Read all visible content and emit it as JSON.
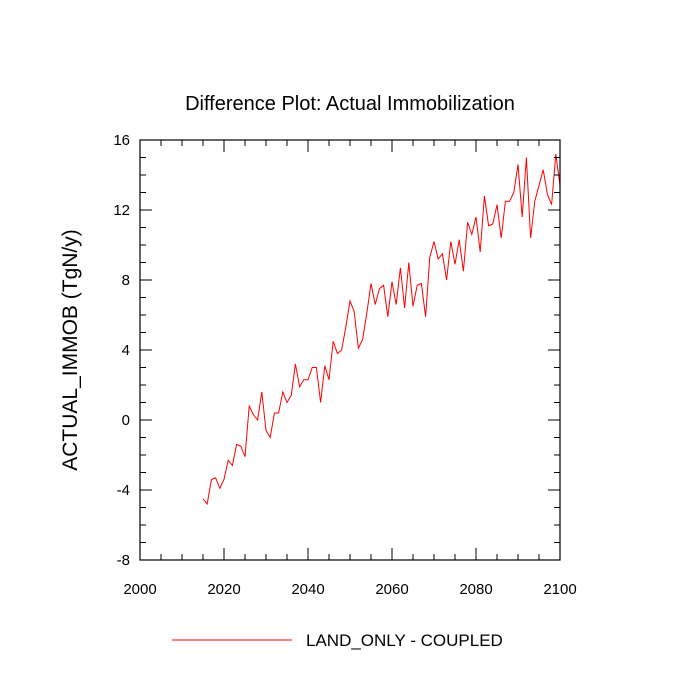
{
  "chart_data": {
    "type": "line",
    "title": "Difference Plot: Actual Immobilization",
    "xlabel": "",
    "ylabel": "ACTUAL_IMMOB  (TgN/y)",
    "xlim": [
      2000,
      2100
    ],
    "ylim": [
      -8,
      16
    ],
    "xticks": [
      2000,
      2020,
      2040,
      2060,
      2080,
      2100
    ],
    "yticks": [
      -8,
      -4,
      0,
      4,
      8,
      12,
      16
    ],
    "grid": false,
    "legend_position": "bottom",
    "colors": {
      "series": "#ff0000",
      "axis": "#000000"
    },
    "series": [
      {
        "name": "LAND_ONLY - COUPLED",
        "x": [
          2015,
          2016,
          2017,
          2018,
          2019,
          2020,
          2021,
          2022,
          2023,
          2024,
          2025,
          2026,
          2027,
          2028,
          2029,
          2030,
          2031,
          2032,
          2033,
          2034,
          2035,
          2036,
          2037,
          2038,
          2039,
          2040,
          2041,
          2042,
          2043,
          2044,
          2045,
          2046,
          2047,
          2048,
          2049,
          2050,
          2051,
          2052,
          2053,
          2054,
          2055,
          2056,
          2057,
          2058,
          2059,
          2060,
          2061,
          2062,
          2063,
          2064,
          2065,
          2066,
          2067,
          2068,
          2069,
          2070,
          2071,
          2072,
          2073,
          2074,
          2075,
          2076,
          2077,
          2078,
          2079,
          2080,
          2081,
          2082,
          2083,
          2084,
          2085,
          2086,
          2087,
          2088,
          2089,
          2090,
          2091,
          2092,
          2093,
          2094,
          2095,
          2096,
          2097,
          2098,
          2099,
          2100
        ],
        "values": [
          -4.5,
          -4.8,
          -3.4,
          -3.3,
          -3.9,
          -3.4,
          -2.3,
          -2.6,
          -1.4,
          -1.5,
          -2.1,
          0.8,
          0.3,
          0.0,
          1.6,
          -0.6,
          -1.0,
          0.4,
          0.4,
          1.6,
          1.0,
          1.4,
          3.2,
          1.9,
          2.3,
          2.3,
          3.0,
          3.0,
          1.0,
          3.1,
          2.3,
          4.5,
          3.8,
          4.0,
          5.3,
          6.8,
          6.2,
          4.1,
          4.6,
          6.1,
          7.8,
          6.6,
          7.5,
          7.7,
          5.9,
          7.9,
          6.6,
          8.7,
          6.4,
          9.0,
          6.5,
          7.7,
          7.8,
          5.9,
          9.3,
          10.2,
          9.2,
          9.5,
          8.0,
          10.2,
          8.9,
          10.3,
          8.5,
          11.3,
          10.6,
          11.6,
          9.6,
          12.8,
          11.1,
          11.2,
          12.3,
          10.4,
          12.5,
          12.5,
          13.0,
          14.6,
          11.6,
          15.0,
          10.4,
          12.5,
          13.4,
          14.3,
          12.9,
          12.3,
          15.2,
          13.4
        ]
      }
    ]
  }
}
